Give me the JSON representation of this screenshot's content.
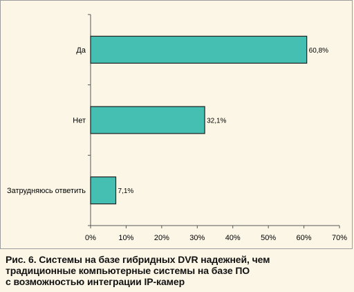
{
  "caption": {
    "lines": [
      "Рис. 6. Системы на базе гибридных DVR надежней, чем",
      "традиционные компьютерные системы на базе ПО",
      "с возможностью интеграции IP-камер"
    ]
  },
  "chart_data": {
    "type": "bar",
    "orientation": "horizontal",
    "categories": [
      "Да",
      "Нет",
      "Затрудняюсь ответить"
    ],
    "values": [
      60.8,
      32.1,
      7.1
    ],
    "value_labels": [
      "60,8%",
      "32,1%",
      "7,1%"
    ],
    "xlim": [
      0,
      70
    ],
    "xticks": [
      0,
      10,
      20,
      30,
      40,
      50,
      60,
      70
    ],
    "xtick_labels": [
      "0%",
      "10%",
      "20%",
      "30%",
      "40%",
      "50%",
      "60%",
      "70%"
    ],
    "grid": false,
    "legend": "none",
    "colors": {
      "bar_fill": "#46bfb3",
      "bar_stroke": "#1f1f1f",
      "axis": "#555555",
      "plot_bg": "#fbf6e6"
    }
  }
}
